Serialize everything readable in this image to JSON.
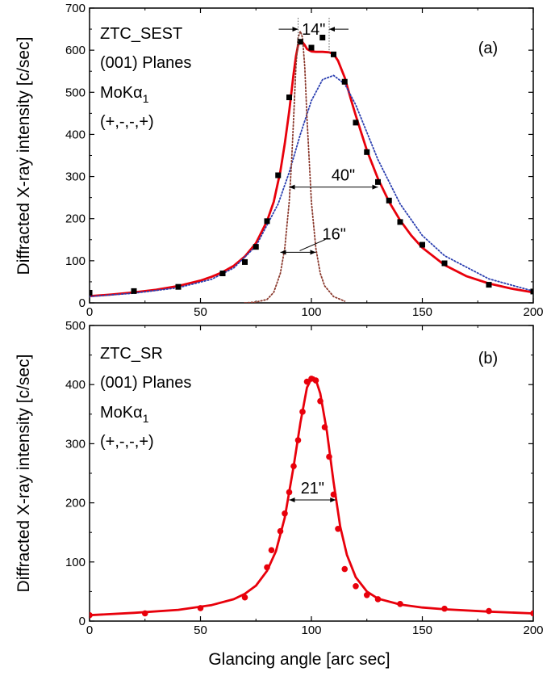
{
  "chart_data": [
    {
      "type": "scatter",
      "panel_label": "(a)",
      "annotation_lines": [
        "ZTC_SEST",
        "(001) Planes",
        "MoKα",
        "(+,-,-,+)"
      ],
      "subscript": "1",
      "ylabel": "Diffracted X-ray intensity [c/sec]",
      "xlim": [
        0,
        200
      ],
      "ylim": [
        0,
        700
      ],
      "xticks": [
        0,
        50,
        100,
        150,
        200
      ],
      "xtick_labels": [
        "0",
        "50",
        "100",
        "150",
        "200"
      ],
      "yticks": [
        0,
        100,
        200,
        300,
        400,
        500,
        600,
        700
      ],
      "ytick_labels": [
        "0",
        "100",
        "200",
        "300",
        "400",
        "500",
        "600",
        "700"
      ],
      "width_annotations": [
        {
          "label": "14\"",
          "x_from": 94,
          "x_to": 108,
          "y": 650,
          "style": "outward"
        },
        {
          "label": "40\"",
          "x_from": 90,
          "x_to": 130,
          "y": 275,
          "style": "inward"
        },
        {
          "label": "16\"",
          "x_from": 86,
          "x_to": 102,
          "y": 120,
          "style": "inward"
        }
      ],
      "series": [
        {
          "kind": "points",
          "marker": "square",
          "color": "#000000",
          "x": [
            0,
            20,
            40,
            60,
            70,
            75,
            80,
            85,
            90,
            95,
            100,
            105,
            110,
            115,
            120,
            125,
            130,
            135,
            140,
            150,
            160,
            180,
            200
          ],
          "y": [
            24,
            28,
            38,
            70,
            97,
            133,
            194,
            303,
            488,
            620,
            606,
            630,
            590,
            525,
            428,
            358,
            287,
            243,
            192,
            138,
            94,
            43,
            27
          ]
        },
        {
          "kind": "fit",
          "style": "solid",
          "color": "#e8000b",
          "x": [
            0,
            10,
            20,
            30,
            40,
            50,
            55,
            60,
            65,
            70,
            75,
            80,
            83,
            86,
            88,
            90,
            92,
            93,
            94,
            95,
            96,
            97,
            98,
            100,
            102,
            105,
            108,
            110,
            112,
            115,
            118,
            120,
            125,
            130,
            135,
            140,
            145,
            150,
            160,
            170,
            180,
            190,
            200
          ],
          "y": [
            16,
            20,
            25,
            31,
            40,
            53,
            62,
            73,
            88,
            110,
            142,
            194,
            240,
            312,
            378,
            455,
            545,
            585,
            612,
            622,
            619,
            612,
            603,
            597,
            596,
            596,
            595,
            591,
            575,
            535,
            480,
            445,
            362,
            295,
            240,
            196,
            160,
            131,
            90,
            63,
            46,
            34,
            25
          ]
        },
        {
          "kind": "component",
          "style": "dotted",
          "color": "#2b3fb0",
          "x": [
            0,
            20,
            40,
            55,
            65,
            75,
            85,
            90,
            95,
            100,
            105,
            110,
            115,
            120,
            130,
            140,
            150,
            160,
            180,
            200
          ],
          "y": [
            15,
            23,
            36,
            56,
            83,
            135,
            235,
            310,
            400,
            480,
            530,
            540,
            520,
            470,
            340,
            235,
            160,
            112,
            57,
            28
          ]
        },
        {
          "kind": "component",
          "style": "dotted",
          "color": "#8b3a2e",
          "x": [
            70,
            75,
            80,
            83,
            86,
            88,
            90,
            91,
            92,
            93,
            94,
            95,
            96,
            97,
            98,
            100,
            102,
            104,
            106,
            110,
            115
          ],
          "y": [
            0,
            2,
            8,
            25,
            70,
            130,
            240,
            330,
            440,
            560,
            630,
            645,
            630,
            560,
            440,
            240,
            130,
            70,
            40,
            15,
            4
          ]
        }
      ]
    },
    {
      "type": "scatter",
      "panel_label": "(b)",
      "annotation_lines": [
        "ZTC_SR",
        "(001) Planes",
        "MoKα",
        "(+,-,-,+)"
      ],
      "subscript": "1",
      "xlabel": "Glancing angle [arc sec]",
      "ylabel": "Diffracted X-ray intensity [c/sec]",
      "xlim": [
        0,
        200
      ],
      "ylim": [
        0,
        500
      ],
      "xticks": [
        0,
        50,
        100,
        150,
        200
      ],
      "xtick_labels": [
        "0",
        "50",
        "100",
        "150",
        "200"
      ],
      "yticks": [
        0,
        100,
        200,
        300,
        400,
        500
      ],
      "ytick_labels": [
        "0",
        "100",
        "200",
        "300",
        "400",
        "500"
      ],
      "width_annotations": [
        {
          "label": "21\"",
          "x_from": 90,
          "x_to": 111,
          "y": 205,
          "style": "inward"
        }
      ],
      "series": [
        {
          "kind": "points",
          "marker": "circle",
          "color": "#e8000b",
          "x": [
            0,
            25,
            50,
            70,
            80,
            82,
            86,
            88,
            90,
            92,
            94,
            96,
            98,
            100,
            102,
            104,
            106,
            108,
            110,
            112,
            115,
            120,
            125,
            130,
            140,
            160,
            180,
            200
          ],
          "y": [
            10,
            13,
            22,
            40,
            91,
            120,
            152,
            182,
            218,
            262,
            306,
            354,
            405,
            410,
            407,
            372,
            328,
            278,
            214,
            156,
            88,
            59,
            44,
            37,
            29,
            21,
            17,
            13
          ]
        },
        {
          "kind": "fit",
          "style": "solid",
          "color": "#e8000b",
          "x": [
            0,
            20,
            40,
            55,
            65,
            70,
            75,
            80,
            84,
            88,
            92,
            95,
            98,
            100,
            101,
            102,
            104,
            107,
            110,
            113,
            116,
            120,
            125,
            130,
            140,
            150,
            160,
            180,
            200
          ],
          "y": [
            10,
            14,
            19,
            27,
            37,
            46,
            60,
            85,
            118,
            175,
            262,
            335,
            395,
            410,
            412,
            408,
            385,
            320,
            235,
            160,
            112,
            74,
            50,
            38,
            28,
            23,
            20,
            16,
            13
          ]
        }
      ]
    }
  ]
}
